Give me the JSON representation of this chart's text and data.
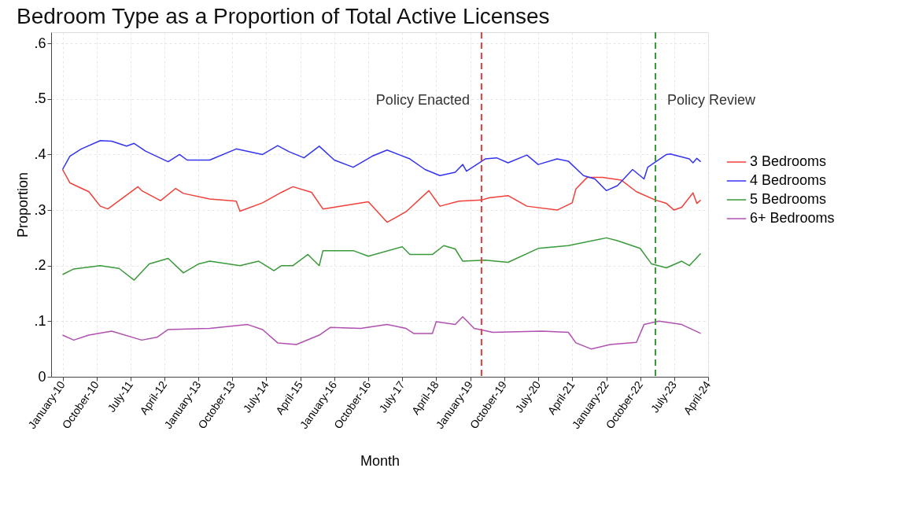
{
  "chart_data": {
    "type": "line",
    "title": "Bedroom Type as a Proportion of Total Active Licenses",
    "xlabel": "Month",
    "ylabel": "Proportion",
    "xlim": [
      "2009-10",
      "2024-04"
    ],
    "ylim": [
      0,
      0.62
    ],
    "xticks": [
      {
        "value": "2010-01",
        "label": "January-10"
      },
      {
        "value": "2010-10",
        "label": "October-10"
      },
      {
        "value": "2011-07",
        "label": "July-11"
      },
      {
        "value": "2012-04",
        "label": "April-12"
      },
      {
        "value": "2013-01",
        "label": "January-13"
      },
      {
        "value": "2013-10",
        "label": "October-13"
      },
      {
        "value": "2014-07",
        "label": "July-14"
      },
      {
        "value": "2015-04",
        "label": "April-15"
      },
      {
        "value": "2016-01",
        "label": "January-16"
      },
      {
        "value": "2016-10",
        "label": "October-16"
      },
      {
        "value": "2017-07",
        "label": "July-17"
      },
      {
        "value": "2018-04",
        "label": "April-18"
      },
      {
        "value": "2019-01",
        "label": "January-19"
      },
      {
        "value": "2019-10",
        "label": "October-19"
      },
      {
        "value": "2020-07",
        "label": "July-20"
      },
      {
        "value": "2021-04",
        "label": "April-21"
      },
      {
        "value": "2022-01",
        "label": "January-22"
      },
      {
        "value": "2022-10",
        "label": "October-22"
      },
      {
        "value": "2023-07",
        "label": "July-23"
      },
      {
        "value": "2024-04",
        "label": "April-24"
      }
    ],
    "yticks": [
      {
        "value": 0,
        "label": "0"
      },
      {
        "value": 0.1,
        "label": ".1"
      },
      {
        "value": 0.2,
        "label": ".2"
      },
      {
        "value": 0.3,
        "label": ".3"
      },
      {
        "value": 0.4,
        "label": ".4"
      },
      {
        "value": 0.5,
        "label": ".5"
      },
      {
        "value": 0.6,
        "label": ".6"
      }
    ],
    "grid": true,
    "legend": "right",
    "line_style": "solid",
    "ref_lines": [
      {
        "axis": "x",
        "value": "2019-04",
        "label": "Policy Enacted",
        "color": "#e8403a",
        "line_style": "dashed"
      },
      {
        "axis": "x",
        "value": "2023-02",
        "label": "Policy Review",
        "color": "#3a9a3a",
        "line_style": "dashed"
      }
    ],
    "series": [
      {
        "name": "3 Bedrooms",
        "color": "#f0403a",
        "x": [
          "2010-01",
          "2010-03",
          "2010-08",
          "2010-11",
          "2011-01",
          "2011-09",
          "2011-10",
          "2012-03",
          "2012-07",
          "2012-09",
          "2013-04",
          "2013-11",
          "2013-12",
          "2014-06",
          "2014-11",
          "2015-02",
          "2015-07",
          "2015-10",
          "2016-10",
          "2017-03",
          "2017-08",
          "2018-02",
          "2018-05",
          "2018-10",
          "2019-04",
          "2019-06",
          "2019-11",
          "2020-04",
          "2020-12",
          "2021-04",
          "2021-05",
          "2021-08",
          "2021-12",
          "2022-05",
          "2022-09",
          "2023-02",
          "2023-05",
          "2023-07",
          "2023-09",
          "2023-12",
          "2024-01",
          "2024-02"
        ],
        "values": [
          0.373,
          0.349,
          0.333,
          0.307,
          0.302,
          0.342,
          0.335,
          0.317,
          0.339,
          0.33,
          0.32,
          0.316,
          0.298,
          0.313,
          0.332,
          0.342,
          0.332,
          0.302,
          0.315,
          0.278,
          0.297,
          0.335,
          0.307,
          0.316,
          0.318,
          0.322,
          0.326,
          0.307,
          0.3,
          0.313,
          0.338,
          0.359,
          0.359,
          0.354,
          0.333,
          0.318,
          0.312,
          0.3,
          0.305,
          0.331,
          0.312,
          0.318
        ]
      },
      {
        "name": "4 Bedrooms",
        "color": "#3434f0",
        "x": [
          "2010-01",
          "2010-03",
          "2010-06",
          "2010-11",
          "2011-02",
          "2011-06",
          "2011-08",
          "2011-11",
          "2012-05",
          "2012-08",
          "2012-10",
          "2013-04",
          "2013-11",
          "2014-06",
          "2014-10",
          "2015-01",
          "2015-05",
          "2015-09",
          "2016-01",
          "2016-06",
          "2016-11",
          "2017-03",
          "2017-09",
          "2018-01",
          "2018-05",
          "2018-09",
          "2018-11",
          "2018-12",
          "2019-05",
          "2019-08",
          "2019-11",
          "2020-04",
          "2020-07",
          "2020-12",
          "2021-03",
          "2021-07",
          "2021-10",
          "2022-01",
          "2022-04",
          "2022-08",
          "2022-11",
          "2022-12",
          "2023-05",
          "2023-06",
          "2023-11",
          "2023-12",
          "2024-01",
          "2024-02"
        ],
        "values": [
          0.373,
          0.397,
          0.41,
          0.425,
          0.424,
          0.415,
          0.42,
          0.406,
          0.387,
          0.4,
          0.39,
          0.39,
          0.41,
          0.4,
          0.416,
          0.405,
          0.394,
          0.415,
          0.39,
          0.377,
          0.397,
          0.408,
          0.392,
          0.373,
          0.362,
          0.368,
          0.382,
          0.37,
          0.392,
          0.394,
          0.385,
          0.399,
          0.382,
          0.392,
          0.388,
          0.362,
          0.356,
          0.335,
          0.344,
          0.373,
          0.356,
          0.377,
          0.4,
          0.401,
          0.392,
          0.385,
          0.393,
          0.387
        ]
      },
      {
        "name": "5 Bedrooms",
        "color": "#3a9a3a",
        "x": [
          "2010-01",
          "2010-04",
          "2010-11",
          "2011-04",
          "2011-08",
          "2011-12",
          "2012-05",
          "2012-09",
          "2013-01",
          "2013-04",
          "2013-12",
          "2014-05",
          "2014-09",
          "2014-11",
          "2015-02",
          "2015-06",
          "2015-09",
          "2015-10",
          "2016-06",
          "2016-10",
          "2017-07",
          "2017-09",
          "2018-03",
          "2018-06",
          "2018-09",
          "2018-11",
          "2019-05",
          "2019-11",
          "2020-07",
          "2021-03",
          "2022-01",
          "2022-04",
          "2022-10",
          "2023-01",
          "2023-05",
          "2023-09",
          "2023-11",
          "2024-02"
        ],
        "values": [
          0.184,
          0.194,
          0.2,
          0.195,
          0.174,
          0.203,
          0.213,
          0.187,
          0.203,
          0.208,
          0.2,
          0.208,
          0.191,
          0.2,
          0.2,
          0.22,
          0.2,
          0.227,
          0.227,
          0.217,
          0.234,
          0.22,
          0.22,
          0.236,
          0.23,
          0.208,
          0.21,
          0.206,
          0.231,
          0.236,
          0.25,
          0.245,
          0.231,
          0.203,
          0.196,
          0.208,
          0.2,
          0.222
        ]
      },
      {
        "name": "6+ Bedrooms",
        "color": "#b050b0",
        "x": [
          "2010-01",
          "2010-04",
          "2010-08",
          "2011-02",
          "2011-10",
          "2012-02",
          "2012-05",
          "2013-04",
          "2014-02",
          "2014-06",
          "2014-10",
          "2015-03",
          "2015-09",
          "2015-12",
          "2016-08",
          "2017-03",
          "2017-08",
          "2017-10",
          "2018-03",
          "2018-04",
          "2018-09",
          "2018-11",
          "2019-02",
          "2019-07",
          "2020-08",
          "2021-03",
          "2021-05",
          "2021-09",
          "2022-02",
          "2022-09",
          "2022-11",
          "2023-03",
          "2023-09",
          "2024-02"
        ],
        "values": [
          0.075,
          0.066,
          0.075,
          0.082,
          0.066,
          0.071,
          0.085,
          0.087,
          0.094,
          0.085,
          0.061,
          0.058,
          0.075,
          0.089,
          0.087,
          0.094,
          0.087,
          0.078,
          0.078,
          0.099,
          0.094,
          0.108,
          0.087,
          0.08,
          0.082,
          0.08,
          0.061,
          0.05,
          0.058,
          0.062,
          0.094,
          0.1,
          0.094,
          0.078
        ]
      }
    ]
  }
}
